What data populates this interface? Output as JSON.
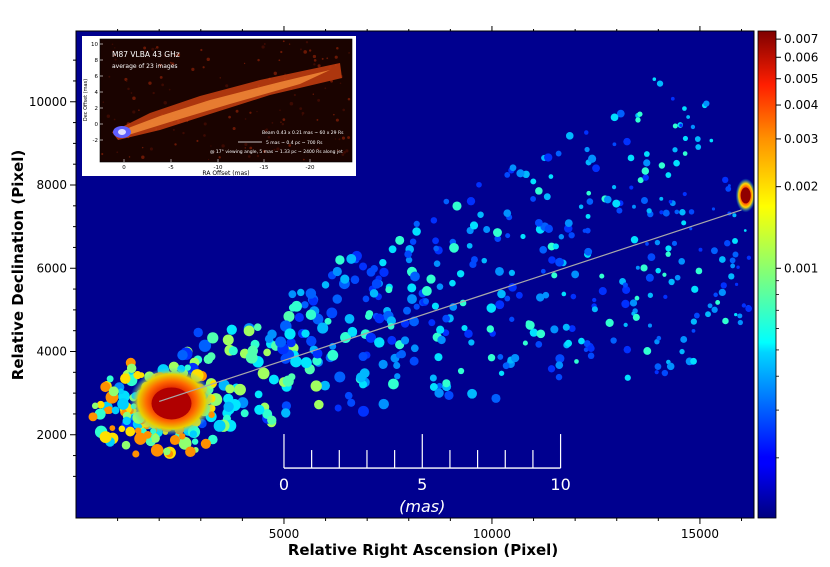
{
  "chart_data": {
    "type": "heatmap",
    "xlabel": "Relative Right Ascension (Pixel)",
    "ylabel": "Relative Declination (Pixel)",
    "xlim": [
      0,
      16300
    ],
    "ylim": [
      0,
      11700
    ],
    "xticks": [
      5000,
      10000,
      15000
    ],
    "yticks": [
      2000,
      4000,
      6000,
      8000,
      10000
    ],
    "colorbar": {
      "colormap": "jet",
      "ticks": [
        "0.007",
        "0.006",
        "0.005",
        "0.004",
        "0.003",
        "0.002",
        "0.001"
      ],
      "tick_values": [
        0.007,
        0.006,
        0.005,
        0.004,
        0.003,
        0.002,
        0.001
      ]
    },
    "background_color": "#00008f",
    "jet_axis_line": {
      "from": [
        2000,
        2800
      ],
      "to": [
        16000,
        7400
      ],
      "color": "#a9a9a9"
    },
    "bright_features": [
      {
        "x": 2200,
        "y": 2800,
        "note": "core"
      },
      {
        "x": 16100,
        "y": 7750,
        "note": "knot"
      }
    ],
    "scale_bar": {
      "tick_labels": [
        "0",
        "5",
        "10"
      ],
      "unit": "(mas)",
      "x_start": 5000,
      "x_end": 11650,
      "y": 1200,
      "minor_ticks": 10
    },
    "inset": {
      "title": "M87  VLBA  43 GHz",
      "subtitle": "average of 23 images",
      "xlabel": "RA Offset (mas)",
      "ylabel": "Dec Offset (mas)",
      "xticks": [
        "0",
        "-5",
        "-10",
        "-15",
        "-20"
      ],
      "yticks": [
        "10",
        "8",
        "6",
        "4",
        "2",
        "0",
        "-2"
      ],
      "beam_note": "Beam 0.43 x 0.21 mas ~ 60 x 29 Rs",
      "scale_note": "5 mas ~ 0.4 pc ~ 700 Rs",
      "angle_note": "@ 17° viewing angle, 5 mas ~ 1.33 pc ~ 2400 Rs along jet"
    }
  }
}
